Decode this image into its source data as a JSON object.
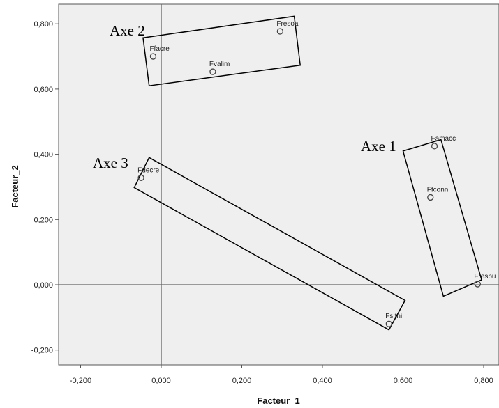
{
  "chart_data": {
    "type": "scatter",
    "title": "",
    "xlabel": "Facteur_1",
    "ylabel": "Facteur_2",
    "xlim": [
      -0.25,
      0.83
    ],
    "ylim": [
      -0.25,
      0.86
    ],
    "x_ticks": [
      -0.2,
      0.0,
      0.2,
      0.4,
      0.6,
      0.8
    ],
    "y_ticks": [
      -0.2,
      0.0,
      0.2,
      0.4,
      0.6,
      0.8
    ],
    "x_tick_labels": [
      "-0,200",
      "0,000",
      "0,200",
      "0,400",
      "0,600",
      "0,800"
    ],
    "y_tick_labels": [
      "-0,200",
      "0,000",
      "0,200",
      "0,400",
      "0,600",
      "0,800"
    ],
    "reference_lines": {
      "x": 0.0,
      "y": 0.0
    },
    "grid": false,
    "background": "#efefef",
    "points": [
      {
        "label": "Fresoa",
        "x": 0.295,
        "y": 0.777
      },
      {
        "label": "Ffacre",
        "x": -0.02,
        "y": 0.7
      },
      {
        "label": "Fvalim",
        "x": 0.128,
        "y": 0.653
      },
      {
        "label": "Famacc",
        "x": 0.678,
        "y": 0.425
      },
      {
        "label": "Ffconn",
        "x": 0.668,
        "y": 0.268
      },
      {
        "label": "Fdecre",
        "x": -0.05,
        "y": 0.328
      },
      {
        "label": "Frespu",
        "x": 0.785,
        "y": 0.002
      },
      {
        "label": "Fsitni",
        "x": 0.565,
        "y": -0.12
      }
    ],
    "groups": [
      {
        "label": "Axe 1",
        "polygon": [
          [
            0.6,
            0.41
          ],
          [
            0.694,
            0.445
          ],
          [
            0.795,
            0.015
          ],
          [
            0.7,
            -0.035
          ]
        ]
      },
      {
        "label": "Axe 2",
        "polygon": [
          [
            -0.045,
            0.757
          ],
          [
            0.33,
            0.823
          ],
          [
            0.345,
            0.673
          ],
          [
            -0.03,
            0.61
          ]
        ]
      },
      {
        "label": "Axe 3",
        "polygon": [
          [
            -0.03,
            0.39
          ],
          [
            0.605,
            -0.048
          ],
          [
            0.565,
            -0.138
          ],
          [
            -0.067,
            0.298
          ]
        ]
      }
    ]
  }
}
